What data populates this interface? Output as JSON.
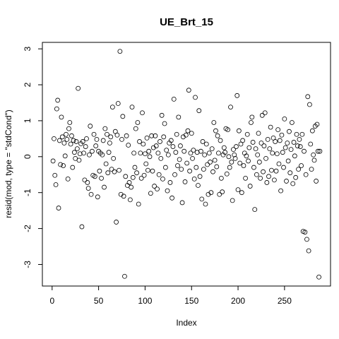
{
  "chart_data": {
    "type": "scatter",
    "title": "UE_Brt_15",
    "xlabel": "Index",
    "ylabel": "resid(mod, type = \"stdCond\")",
    "color": "#000000",
    "xlim": [
      -10.48,
      299.48
    ],
    "ylim": [
      -3.6,
      3.18
    ],
    "xticks": [
      0,
      50,
      100,
      150,
      200,
      250
    ],
    "yticks": [
      -3,
      -2,
      -1,
      0,
      1,
      2,
      3
    ],
    "x": [
      1,
      2,
      3,
      4,
      5,
      6,
      7,
      8,
      9,
      10,
      11,
      12,
      13,
      14,
      15,
      16,
      17,
      18,
      19,
      20,
      21,
      22,
      23,
      24,
      25,
      26,
      27,
      28,
      29,
      30,
      31,
      32,
      33,
      34,
      35,
      36,
      37,
      38,
      39,
      40,
      41,
      42,
      43,
      44,
      45,
      46,
      47,
      48,
      49,
      50,
      51,
      52,
      53,
      54,
      55,
      56,
      57,
      58,
      59,
      60,
      61,
      62,
      63,
      64,
      65,
      66,
      67,
      68,
      69,
      70,
      71,
      72,
      73,
      74,
      75,
      76,
      77,
      78,
      79,
      80,
      81,
      82,
      83,
      84,
      85,
      86,
      87,
      88,
      89,
      90,
      91,
      92,
      93,
      94,
      95,
      96,
      97,
      98,
      99,
      100,
      101,
      102,
      103,
      104,
      105,
      106,
      107,
      108,
      109,
      110,
      111,
      112,
      113,
      114,
      115,
      116,
      117,
      118,
      119,
      120,
      121,
      122,
      123,
      124,
      125,
      126,
      127,
      128,
      129,
      130,
      131,
      132,
      133,
      134,
      135,
      136,
      137,
      138,
      139,
      140,
      141,
      142,
      143,
      144,
      145,
      146,
      147,
      148,
      149,
      150,
      151,
      152,
      153,
      154,
      155,
      156,
      157,
      158,
      159,
      160,
      161,
      162,
      163,
      164,
      165,
      166,
      167,
      168,
      169,
      170,
      171,
      172,
      173,
      174,
      175,
      176,
      177,
      178,
      179,
      180,
      181,
      182,
      183,
      184,
      185,
      186,
      187,
      188,
      189,
      190,
      191,
      192,
      193,
      194,
      195,
      196,
      197,
      198,
      199,
      200,
      201,
      202,
      203,
      204,
      205,
      206,
      207,
      208,
      209,
      210,
      211,
      212,
      213,
      214,
      215,
      216,
      217,
      218,
      219,
      220,
      221,
      222,
      223,
      224,
      225,
      226,
      227,
      228,
      229,
      230,
      231,
      232,
      233,
      234,
      235,
      236,
      237,
      238,
      239,
      240,
      241,
      242,
      243,
      244,
      245,
      246,
      247,
      248,
      249,
      250,
      251,
      252,
      253,
      254,
      255,
      256,
      257,
      258,
      259,
      260,
      261,
      262,
      263,
      264,
      265,
      266,
      267,
      268,
      269,
      270,
      271,
      272,
      273,
      274,
      275,
      276,
      277,
      278,
      279,
      280,
      281,
      282,
      283,
      284,
      285,
      286,
      287,
      288
    ],
    "values": [
      -0.12,
      0.5,
      -0.52,
      -0.78,
      1.33,
      1.57,
      -1.43,
      0.45,
      -0.22,
      1.1,
      0.55,
      -0.25,
      0.38,
      0.02,
      0.62,
      0.48,
      -0.62,
      0.78,
      0.95,
      0.35,
      0.58,
      -0.3,
      0.45,
      0.12,
      -0.05,
      0.42,
      0.22,
      1.9,
      -0.1,
      0.08,
      0.36,
      -1.95,
      0.42,
      0.1,
      -0.65,
      0.28,
      0.5,
      -0.72,
      -0.88,
      0.05,
      0.85,
      -1.05,
      0.15,
      -0.52,
      0.62,
      -0.55,
      0.3,
      0.48,
      -1.12,
      0.15,
      -0.4,
      0.1,
      -0.6,
      0.05,
      0.45,
      -0.85,
      0.78,
      -0.2,
      0.62,
      -0.45,
      0.12,
      0.38,
      0.55,
      -0.35,
      1.38,
      -0.05,
      -0.42,
      0.7,
      -1.82,
      0.6,
      1.48,
      -0.38,
      2.93,
      -1.05,
      0.48,
      1.12,
      -1.1,
      -3.33,
      -0.55,
      0.58,
      -0.8,
      0.32,
      -0.72,
      -1.2,
      -0.85,
      1.38,
      -0.58,
      0.1,
      -0.3,
      0.78,
      -0.45,
      0.95,
      -1.32,
      0.42,
      0.1,
      -0.6,
      1.22,
      0.35,
      -0.52,
      0.08,
      -0.2,
      0.52,
      -0.38,
      0.15,
      0.0,
      -1.02,
      0.58,
      -0.4,
      0.25,
      -0.82,
      0.58,
      0.3,
      -0.9,
      0.1,
      -0.5,
      0.42,
      -0.05,
      1.15,
      -0.62,
      0.55,
      0.92,
      -0.3,
      0.18,
      -0.95,
      0.05,
      0.38,
      -0.72,
      0.45,
      -1.15,
      0.28,
      1.6,
      -0.5,
      0.12,
      0.62,
      -0.25,
      1.1,
      -0.08,
      0.3,
      -0.35,
      -1.28,
      0.55,
      0.15,
      -0.7,
      0.6,
      -0.18,
      0.72,
      1.85,
      -0.4,
      0.1,
      0.65,
      -0.05,
      0.18,
      -0.62,
      1.65,
      -0.3,
      0.12,
      -0.8,
      1.28,
      -0.55,
      0.15,
      -1.18,
      0.42,
      -0.35,
      0.05,
      -1.32,
      0.35,
      -0.22,
      -1.05,
      0.1,
      -0.15,
      -1.0,
      0.22,
      -0.42,
      0.95,
      -0.1,
      0.72,
      -0.28,
      0.58,
      0.1,
      -1.05,
      0.45,
      -0.6,
      -0.98,
      0.05,
      0.25,
      0.12,
      0.78,
      -0.48,
      0.75,
      0.0,
      -0.3,
      1.38,
      -0.15,
      -1.22,
      0.2,
      0.05,
      -0.05,
      0.28,
      1.7,
      -0.92,
      0.72,
      -0.18,
      0.35,
      -1.0,
      0.45,
      -0.25,
      0.1,
      -0.6,
      0.02,
      0.62,
      -0.12,
      0.25,
      -0.82,
      0.95,
      1.1,
      0.4,
      -0.3,
      -1.47,
      0.22,
      -0.5,
      0.05,
      0.65,
      -0.15,
      -0.6,
      0.38,
      1.15,
      -0.42,
      0.3,
      1.22,
      -0.05,
      -0.72,
      0.48,
      -0.55,
      0.22,
      0.82,
      -0.38,
      0.1,
      0.52,
      -0.65,
      0.42,
      -0.4,
      0.08,
      0.75,
      -0.2,
      0.45,
      -0.95,
      0.6,
      0.12,
      -0.3,
      1.05,
      0.25,
      -0.68,
      0.38,
      -0.12,
      0.7,
      -0.45,
      0.2,
      0.95,
      -0.75,
      0.4,
      0.02,
      -0.58,
      0.62,
      0.3,
      -0.35,
      0.48,
      0.28,
      -0.25,
      0.62,
      -2.08,
      0.15,
      -2.1,
      -0.5,
      -2.3,
      1.67,
      -2.62,
      1.45,
      0.35,
      -0.35,
      0.72,
      0.05,
      -0.1,
      0.85,
      -0.68,
      0.9,
      0.15,
      -3.35,
      0.15
    ]
  }
}
